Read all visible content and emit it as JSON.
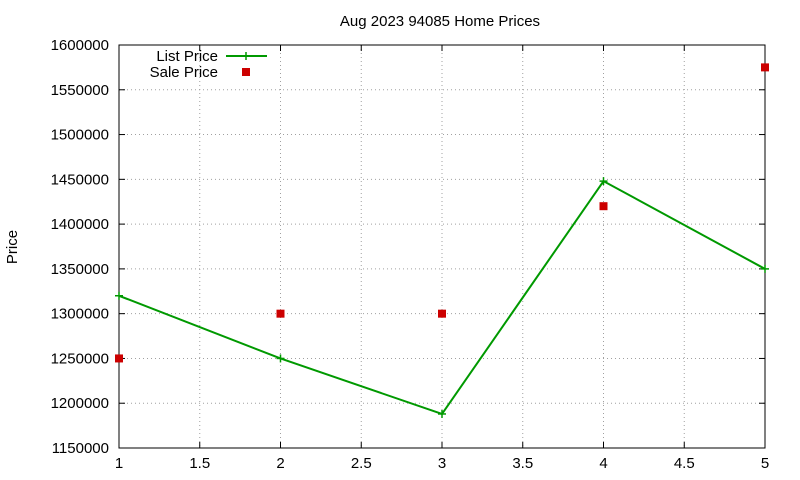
{
  "chart_data": {
    "type": "line",
    "title": "Aug 2023 94085 Home Prices",
    "xlabel": "",
    "ylabel": "Price",
    "xlim": [
      1,
      5
    ],
    "ylim": [
      1150000,
      1600000
    ],
    "x_ticks": [
      1,
      1.5,
      2,
      2.5,
      3,
      3.5,
      4,
      4.5,
      5
    ],
    "y_ticks": [
      1150000,
      1200000,
      1250000,
      1300000,
      1350000,
      1400000,
      1450000,
      1500000,
      1550000,
      1600000
    ],
    "grid": true,
    "legend_position": "top-left",
    "series": [
      {
        "name": "List Price",
        "style": "line-with-plus-markers",
        "color": "#009900",
        "x": [
          1,
          2,
          3,
          4,
          5
        ],
        "values": [
          1320000,
          1250000,
          1188000,
          1448000,
          1350000
        ]
      },
      {
        "name": "Sale Price",
        "style": "square-markers",
        "color": "#cc0000",
        "x": [
          1,
          2,
          3,
          4,
          5
        ],
        "values": [
          1250000,
          1300000,
          1300000,
          1420000,
          1575000
        ]
      }
    ]
  }
}
